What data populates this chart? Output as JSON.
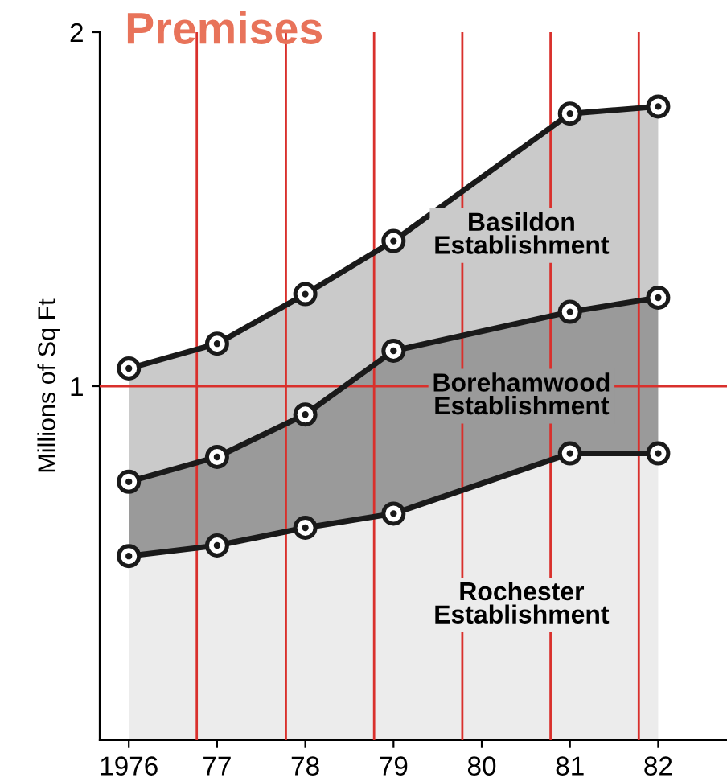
{
  "chart_data": {
    "type": "area",
    "title": "Premises",
    "ylabel": "Millions of Sq Ft",
    "stacked": true,
    "marker": "circle",
    "x": [
      1976,
      1977,
      1978,
      1979,
      1981,
      1982
    ],
    "series": [
      {
        "name": "Rochester Establishment",
        "color": "#ececec",
        "values": [
          0.52,
          0.55,
          0.6,
          0.64,
          0.81,
          0.81
        ]
      },
      {
        "name": "Borehamwood Establishment",
        "color": "#9a9a9a",
        "values": [
          0.21,
          0.25,
          0.32,
          0.46,
          0.4,
          0.44
        ]
      },
      {
        "name": "Basildon Establishment",
        "color": "#cacaca",
        "values": [
          0.32,
          0.32,
          0.34,
          0.31,
          0.56,
          0.54
        ]
      }
    ],
    "xlim": [
      1975.67,
      1982.78
    ],
    "ylim": [
      0,
      2
    ],
    "xticks": [
      1976,
      {
        "value": 1977,
        "label": "77"
      },
      {
        "value": 1978,
        "label": "78"
      },
      {
        "value": 1979,
        "label": "79"
      },
      {
        "value": 1980,
        "label": "80"
      },
      {
        "value": 1981,
        "label": "81"
      },
      {
        "value": 1982,
        "label": "82"
      }
    ],
    "yticks": [
      1,
      2
    ],
    "ref_lines": [
      {
        "axis": "x",
        "value": 1976.77,
        "color": "#d9302c"
      },
      {
        "axis": "x",
        "value": 1977.78,
        "color": "#d9302c"
      },
      {
        "axis": "x",
        "value": 1978.78,
        "color": "#d9302c"
      },
      {
        "axis": "x",
        "value": 1979.78,
        "color": "#d9302c"
      },
      {
        "axis": "x",
        "value": 1980.78,
        "color": "#d9302c"
      },
      {
        "axis": "x",
        "value": 1981.78,
        "color": "#d9302c"
      },
      {
        "axis": "y",
        "value": 1,
        "color": "#d9302c"
      }
    ],
    "grid": false,
    "legend": false
  }
}
